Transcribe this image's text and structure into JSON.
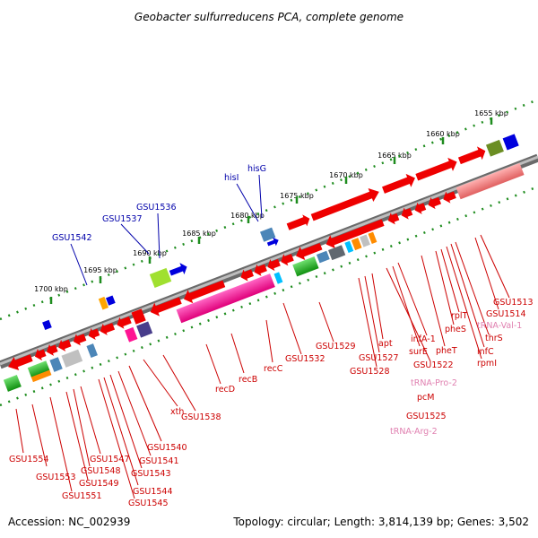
{
  "title": "Geobacter sulfurreducens PCA, complete genome",
  "footer": {
    "accession": "Accession: NC_002939",
    "summary": "Topology: circular; Length: 3,814,139 bp; Genes: 3,502"
  },
  "colors": {
    "backbone": "#808080",
    "tick": "#1e8c1e",
    "label_red": "#cc0000",
    "label_pink": "#e080b0",
    "label_blue": "#0000aa"
  },
  "scale_marks": [
    "1655 kbp",
    "1660 kbp",
    "1665 kbp",
    "1670 kbp",
    "1675 kbp",
    "1680 kbp",
    "1685 kbp",
    "1690 kbp",
    "1695 kbp",
    "1700 kbp"
  ],
  "top_labels": [
    "hisG",
    "hisI",
    "GSU1536",
    "GSU1537",
    "GSU1542"
  ],
  "bottom_labels": {
    "group_right": [
      "GSU1513",
      "GSU1514",
      "tRNA-Val-1",
      "thrS",
      "infC",
      "rpmI",
      "rplT",
      "pheS",
      "pheT",
      "infA-1",
      "surE",
      "GSU1522",
      "tRNA-Pro-2",
      "pcM",
      "GSU1525",
      "tRNA-Arg-2",
      "apt",
      "GSU1527",
      "GSU1528",
      "GSU1529"
    ],
    "group_middle": [
      "GSU1532",
      "recC",
      "recB",
      "recD",
      "GSU1538",
      "xth"
    ],
    "group_left": [
      "GSU1540",
      "GSU1541",
      "GSU1543",
      "GSU1544",
      "GSU1545",
      "GSU1547",
      "GSU1548",
      "GSU1549",
      "GSU1551",
      "GSU1553",
      "GSU1554"
    ]
  }
}
